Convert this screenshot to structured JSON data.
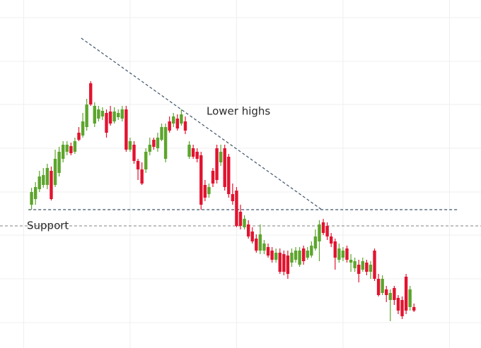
{
  "chart_data": {
    "type": "candlestick",
    "x": [
      0,
      1,
      2,
      3,
      4,
      5,
      6,
      7,
      8,
      9,
      10,
      11,
      12,
      13,
      14,
      15,
      16,
      17,
      18,
      19,
      20,
      21,
      22,
      23,
      24,
      25,
      26,
      27,
      28,
      29,
      30,
      31,
      32,
      33,
      34,
      35,
      36,
      37,
      38,
      39,
      40,
      41,
      42,
      43,
      44,
      45,
      46,
      47,
      48,
      49,
      50,
      51,
      52,
      53,
      54,
      55,
      56,
      57,
      58,
      59,
      60,
      61,
      62,
      63,
      64,
      65,
      66,
      67,
      68,
      69,
      70,
      71,
      72,
      73,
      74,
      75,
      76,
      77,
      78,
      79,
      80,
      81,
      82,
      83,
      84,
      85,
      86,
      87,
      88,
      89,
      90,
      91,
      92,
      93,
      94,
      95,
      96,
      97
    ],
    "open": [
      203,
      211,
      225,
      231,
      231,
      251,
      231,
      248,
      268,
      278,
      286,
      278,
      305,
      301,
      313,
      375,
      318,
      325,
      328,
      333,
      335,
      321,
      327,
      325,
      338,
      281,
      288,
      265,
      253,
      253,
      278,
      295,
      283,
      295,
      268,
      321,
      318,
      325,
      318,
      321,
      271,
      283,
      278,
      273,
      231,
      218,
      251,
      283,
      263,
      283,
      271,
      218,
      223,
      193,
      171,
      175,
      165,
      155,
      138,
      138,
      143,
      138,
      125,
      135,
      133,
      131,
      121,
      125,
      118,
      141,
      128,
      131,
      141,
      151,
      178,
      173,
      158,
      151,
      125,
      128,
      141,
      121,
      113,
      118,
      111,
      121,
      108,
      138,
      98,
      78,
      83,
      68,
      85,
      71,
      68,
      101,
      58,
      58
    ],
    "high": [
      227,
      235,
      251,
      255,
      261,
      257,
      281,
      285,
      293,
      293,
      291,
      298,
      313,
      333,
      353,
      378,
      348,
      343,
      341,
      338,
      343,
      341,
      338,
      343,
      343,
      298,
      293,
      268,
      263,
      283,
      298,
      298,
      305,
      318,
      318,
      328,
      333,
      331,
      338,
      328,
      293,
      288,
      283,
      278,
      238,
      233,
      255,
      288,
      288,
      288,
      275,
      233,
      228,
      203,
      188,
      181,
      171,
      161,
      175,
      153,
      148,
      143,
      141,
      141,
      138,
      138,
      141,
      143,
      143,
      145,
      143,
      151,
      168,
      181,
      183,
      178,
      163,
      155,
      148,
      143,
      145,
      133,
      128,
      125,
      128,
      125,
      123,
      141,
      105,
      103,
      88,
      83,
      88,
      75,
      73,
      105,
      88,
      63
    ],
    "low": [
      196,
      203,
      221,
      227,
      225,
      209,
      228,
      243,
      263,
      273,
      273,
      275,
      293,
      298,
      308,
      343,
      313,
      321,
      323,
      298,
      315,
      318,
      323,
      321,
      278,
      278,
      261,
      238,
      231,
      248,
      273,
      281,
      278,
      293,
      263,
      305,
      313,
      308,
      315,
      303,
      268,
      268,
      263,
      196,
      208,
      213,
      228,
      233,
      258,
      223,
      213,
      203,
      171,
      168,
      168,
      155,
      148,
      135,
      133,
      133,
      128,
      121,
      121,
      105,
      103,
      98,
      115,
      121,
      115,
      118,
      125,
      128,
      138,
      123,
      160,
      153,
      143,
      111,
      121,
      123,
      121,
      108,
      108,
      93,
      108,
      103,
      98,
      95,
      73,
      75,
      65,
      38,
      61,
      48,
      41,
      48,
      53,
      51
    ],
    "close": [
      221,
      228,
      243,
      245,
      255,
      211,
      268,
      278,
      288,
      288,
      276,
      293,
      295,
      321,
      345,
      345,
      343,
      338,
      336,
      305,
      318,
      335,
      333,
      338,
      281,
      293,
      265,
      253,
      233,
      278,
      288,
      285,
      298,
      313,
      313,
      308,
      328,
      311,
      331,
      308,
      288,
      271,
      268,
      203,
      213,
      228,
      233,
      238,
      278,
      228,
      218,
      208,
      173,
      173,
      183,
      158,
      151,
      138,
      161,
      148,
      131,
      125,
      135,
      108,
      108,
      105,
      135,
      138,
      138,
      123,
      138,
      145,
      158,
      175,
      163,
      158,
      148,
      128,
      141,
      138,
      125,
      125,
      123,
      105,
      123,
      108,
      118,
      98,
      75,
      98,
      75,
      78,
      68,
      53,
      45,
      53,
      83,
      53
    ],
    "up_color": "#5ca52c",
    "down_color": "#e2132f",
    "xlim": [
      -8,
      114
    ],
    "ylim": [
      0,
      493
    ],
    "xticks": [
      -2,
      25,
      52,
      79,
      106
    ],
    "yticks": [
      36,
      98,
      160,
      221,
      283,
      345,
      406,
      468
    ],
    "grid": true,
    "lines": [
      {
        "x": [
          12.6,
          73.6
        ],
        "y": [
          439,
          196
        ],
        "color": "#3d536b"
      },
      {
        "x": [
          -0.8,
          108.3
        ],
        "y": [
          196,
          196
        ],
        "color": "#3d536b"
      },
      {
        "x": [
          -8,
          114
        ],
        "y": [
          173,
          173
        ],
        "color": "#9a9a9a"
      }
    ],
    "annotations": [
      "Lower highs",
      "Support"
    ]
  }
}
